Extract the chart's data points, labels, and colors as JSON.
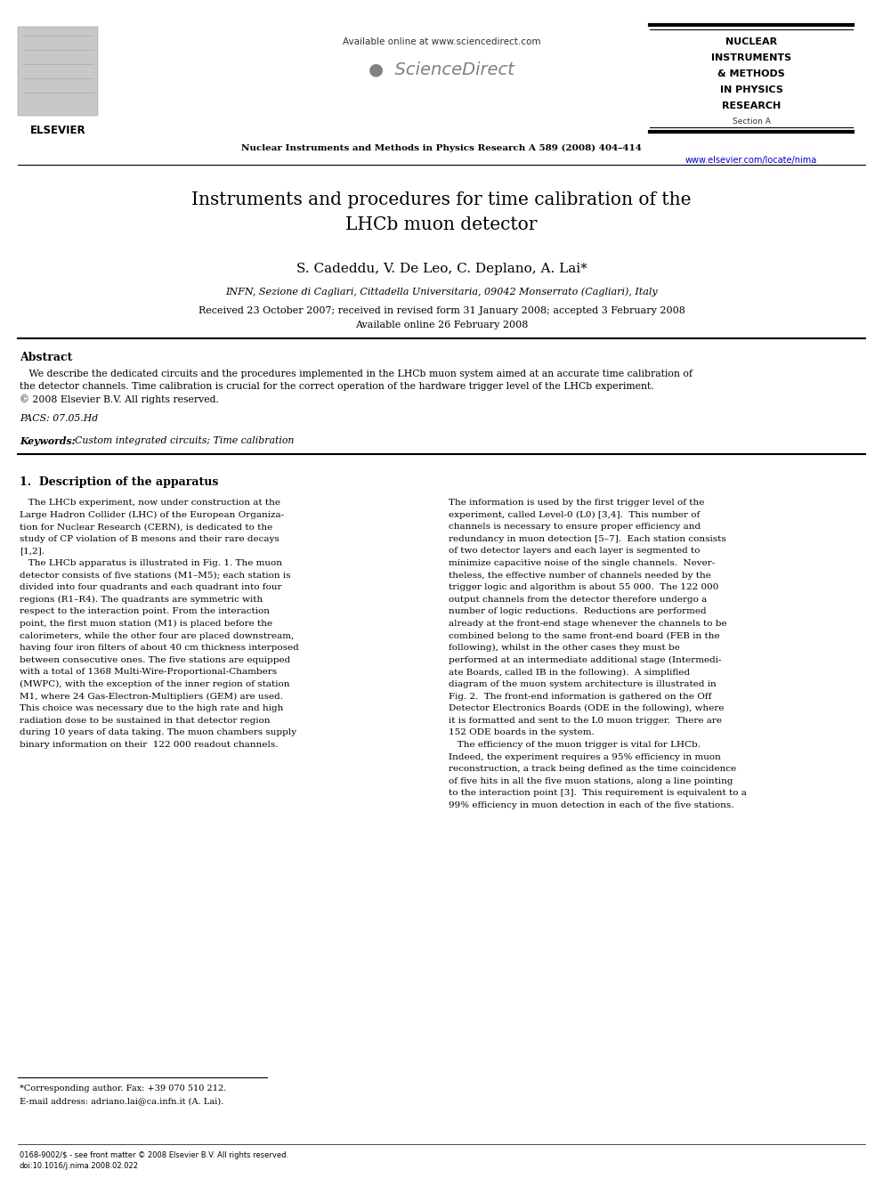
{
  "background_color": "#ffffff",
  "page_width": 9.92,
  "page_height": 13.23,
  "header": {
    "available_online_text": "Available online at www.sciencedirect.com",
    "sciencedirect_text": "ScienceDirect",
    "journal_name": "Nuclear Instruments and Methods in Physics Research A 589 (2008) 404–414",
    "journal_box_lines": [
      "NUCLEAR",
      "INSTRUMENTS",
      "& METHODS",
      "IN PHYSICS",
      "RESEARCH",
      "Section A"
    ],
    "website": "www.elsevier.com/locate/nima",
    "website_color": "#0000cc"
  },
  "title_line1": "Instruments and procedures for time calibration of the",
  "title_line2": "LHCb muon detector",
  "authors": "S. Cadeddu, V. De Leo, C. Deplano, A. Lai*",
  "affiliation": "INFN, Sezione di Cagliari, Cittadella Universitaria, 09042 Monserrato (Cagliari), Italy",
  "date_line1": "Received 23 October 2007; received in revised form 31 January 2008; accepted 3 February 2008",
  "date_line2": "Available online 26 February 2008",
  "abstract_title": "Abstract",
  "abstract_text": "   We describe the dedicated circuits and the procedures implemented in the LHCb muon system aimed at an accurate time calibration of\nthe detector channels. Time calibration is crucial for the correct operation of the hardware trigger level of the LHCb experiment.\n© 2008 Elsevier B.V. All rights reserved.",
  "pacs_text": "PACS: 07.05.Hd",
  "keywords_label": "Keywords: ",
  "keywords_text": "Custom integrated circuits; Time calibration",
  "section1_title": "1.  Description of the apparatus",
  "left_col_para1": "   The LHCb experiment, now under construction at the\nLarge Hadron Collider (LHC) of the European Organiza-\ntion for Nuclear Research (CERN), is dedicated to the\nstudy of CP violation of B mesons and their rare decays\n[1,2].\n   The LHCb apparatus is illustrated in Fig. 1. The muon\ndetector consists of five stations (M1–M5); each station is\ndivided into four quadrants and each quadrant into four\nregions (R1–R4). The quadrants are symmetric with\nrespect to the interaction point. From the interaction\npoint, the first muon station (M1) is placed before the\ncalorimeters, while the other four are placed downstream,\nhaving four iron filters of about 40 cm thickness interposed\nbetween consecutive ones. The five stations are equipped\nwith a total of 1368 Multi-Wire-Proportional-Chambers\n(MWPC), with the exception of the inner region of station\nM1, where 24 Gas-Electron-Multipliers (GEM) are used.\nThis choice was necessary due to the high rate and high\nradiation dose to be sustained in that detector region\nduring 10 years of data taking. The muon chambers supply\nbinary information on their  122 000 readout channels.",
  "right_col_para1": "The information is used by the first trigger level of the\nexperiment, called Level-0 (L0) [3,4].  This number of\nchannels is necessary to ensure proper efficiency and\nredundancy in muon detection [5–7].  Each station consists\nof two detector layers and each layer is segmented to\nminimize capacitive noise of the single channels.  Never-\ntheless, the effective number of channels needed by the\ntrigger logic and algorithm is about 55 000.  The 122 000\noutput channels from the detector therefore undergo a\nnumber of logic reductions.  Reductions are performed\nalready at the front-end stage whenever the channels to be\ncombined belong to the same front-end board (FEB in the\nfollowing), whilst in the other cases they must be\nperformed at an intermediate additional stage (Intermedi-\nate Boards, called IB in the following).  A simplified\ndiagram of the muon system architecture is illustrated in\nFig. 2.  The front-end information is gathered on the Off\nDetector Electronics Boards (ODE in the following), where\nit is formatted and sent to the L0 muon trigger.  There are\n152 ODE boards in the system.\n   The efficiency of the muon trigger is vital for LHCb.\nIndeed, the experiment requires a 95% efficiency in muon\nreconstruction, a track being defined as the time coincidence\nof five hits in all the five muon stations, along a line pointing\nto the interaction point [3].  This requirement is equivalent to a\n99% efficiency in muon detection in each of the five stations.",
  "footnote_star": "*Corresponding author. Fax: +39 070 510 212.",
  "footnote_email": "E-mail address: adriano.lai@ca.infn.it (A. Lai).",
  "footer_line1": "0168-9002/$ - see front matter © 2008 Elsevier B.V. All rights reserved.",
  "footer_line2": "doi:10.1016/j.nima.2008.02.022"
}
